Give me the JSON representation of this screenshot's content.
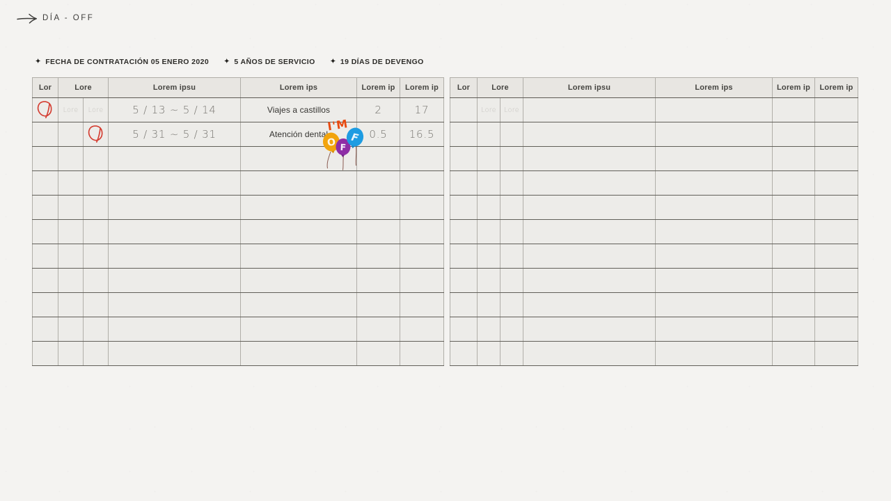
{
  "page": {
    "title": "DÍA - OFF"
  },
  "meta": {
    "items": [
      {
        "icon": "sparkle-icon",
        "label": "FECHA DE CONTRATACIÓN 05 ENERO 2020"
      },
      {
        "icon": "sparkle-icon",
        "label": "5 AÑOS DE SERVICIO"
      },
      {
        "icon": "sparkle-icon",
        "label": "19 DÍAS DE DEVENGO"
      }
    ],
    "icon_glyph": "✦"
  },
  "tables": {
    "headers": [
      "Lor",
      "Lore",
      "Lorem ipsu",
      "Lorem ips",
      "Lorem ip",
      "Lorem ip"
    ],
    "left": {
      "rows": [
        {
          "c1_mark": true,
          "c2a": "Lore",
          "c2b": "Lore",
          "date": "5 / 13 ~ 5 / 14",
          "desc": "Viajes a castillos",
          "v1": "2",
          "v2": "17"
        },
        {
          "c2b_mark": true,
          "date": "5 / 31 ~ 5 / 31",
          "desc": "Atención dental",
          "v1": "0.5",
          "v2": "16.5"
        },
        {},
        {},
        {},
        {},
        {},
        {},
        {},
        {},
        {}
      ]
    },
    "right": {
      "rows": [
        {
          "c2a": "Lore",
          "c2b": "Lore"
        },
        {},
        {},
        {},
        {},
        {},
        {},
        {},
        {},
        {},
        {}
      ]
    }
  },
  "sticker": {
    "top_text": "I'M",
    "top_color": "#e8490f",
    "balloons": [
      {
        "letter": "O",
        "color": "#f2a40d",
        "knot": "#d98f06"
      },
      {
        "letter": "F",
        "color": "#8e2ea6",
        "knot": "#6f2384"
      },
      {
        "letter": "F",
        "color": "#1e9ce2",
        "knot": "#1780bd"
      }
    ]
  },
  "colors": {
    "annotation_red": "#d43c30",
    "paper": "#f4f3f1",
    "header_bg": "#e8e6e2",
    "cell_bg": "#edece9"
  }
}
